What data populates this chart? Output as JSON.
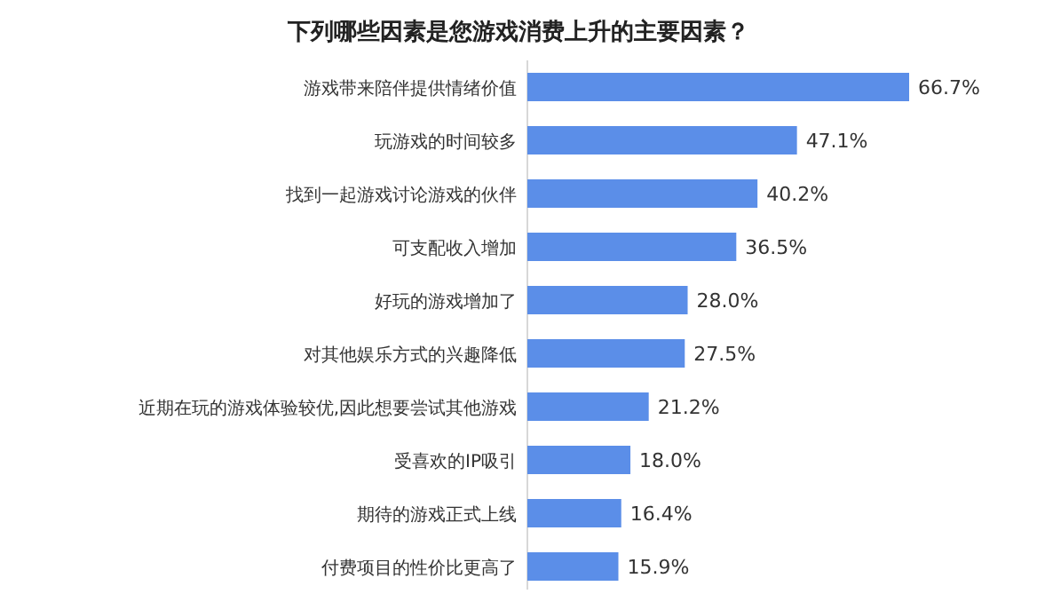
{
  "chart_data": {
    "type": "bar",
    "orientation": "horizontal",
    "title": "下列哪些因素是您游戏消费上升的主要因素？",
    "categories": [
      "游戏带来陪伴提供情绪价值",
      "玩游戏的时间较多",
      "找到一起游戏讨论游戏的伙伴",
      "可支配收入增加",
      "好玩的游戏增加了",
      "对其他娱乐方式的兴趣降低",
      "近期在玩的游戏体验较优,因此想要尝试其他游戏",
      "受喜欢的IP吸引",
      "期待的游戏正式上线",
      "付费项目的性价比更高了"
    ],
    "values": [
      66.7,
      47.1,
      40.2,
      36.5,
      28.0,
      27.5,
      21.2,
      18.0,
      16.4,
      15.9
    ],
    "value_labels": [
      "66.7%",
      "47.1%",
      "40.2%",
      "36.5%",
      "28.0%",
      "27.5%",
      "21.2%",
      "18.0%",
      "16.4%",
      "15.9%"
    ],
    "color": "#5b8ee8"
  }
}
